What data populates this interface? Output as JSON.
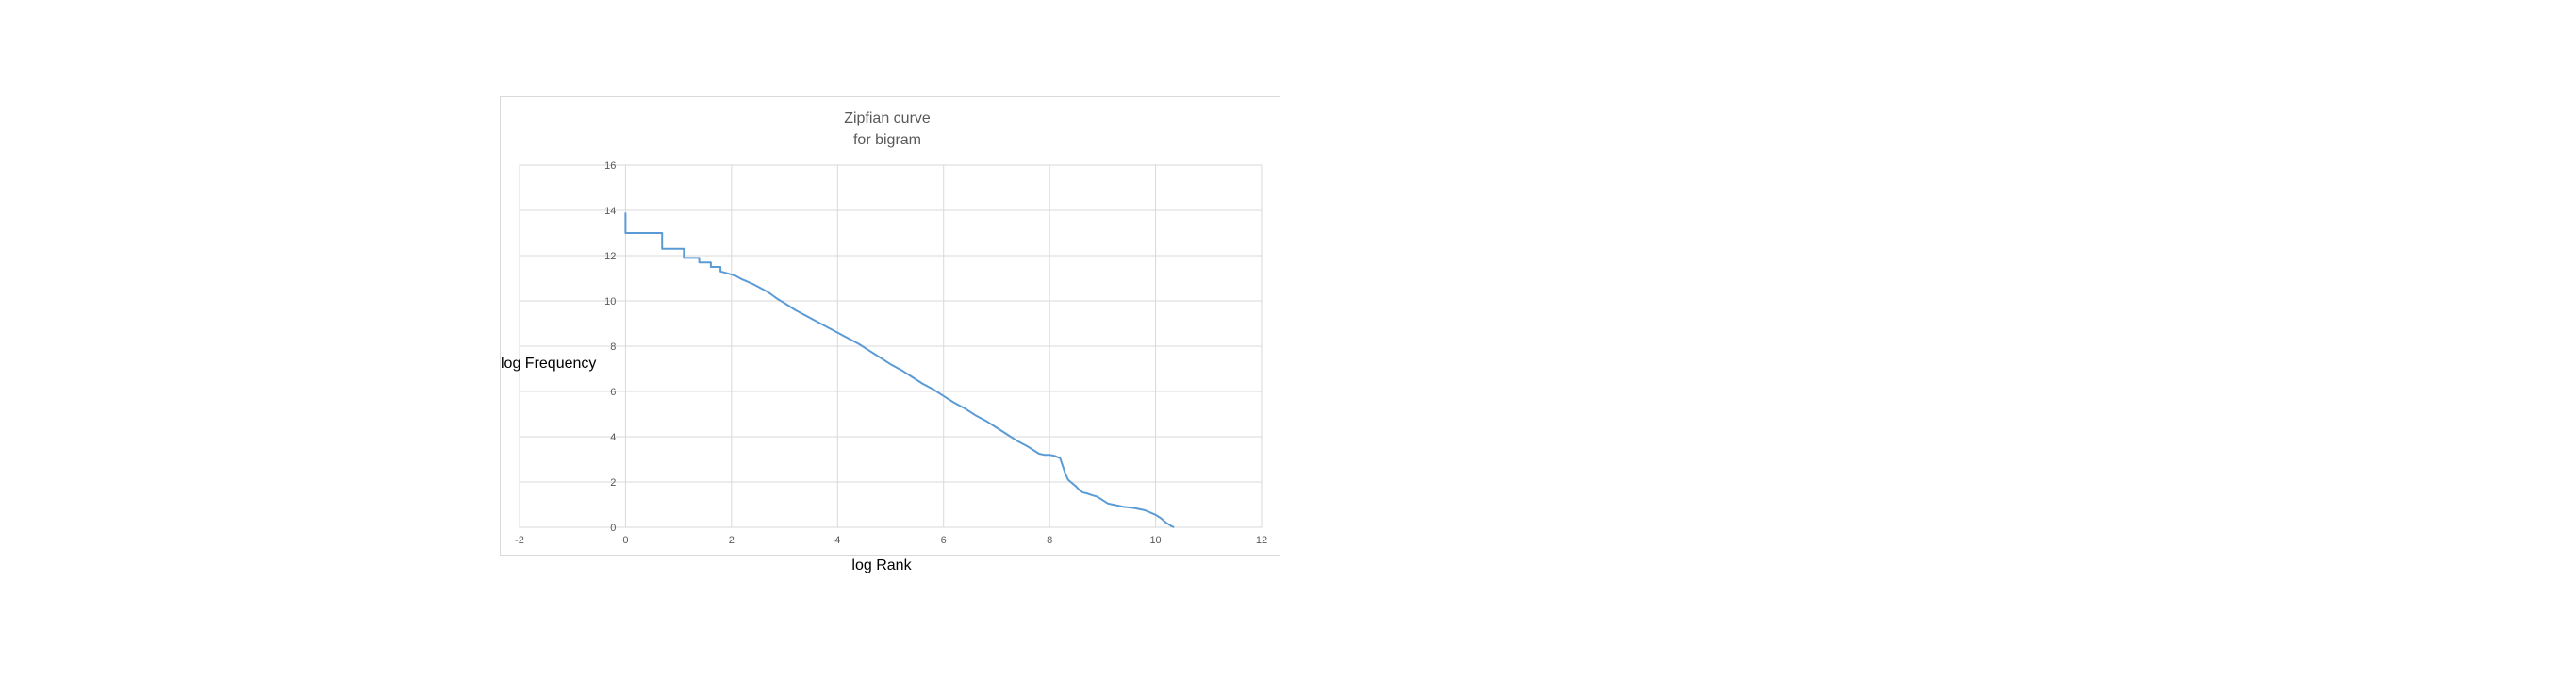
{
  "chart_data": {
    "type": "line",
    "title": [
      "Zipfian curve",
      "for bigram"
    ],
    "xlabel": "log Rank",
    "ylabel": "log Frequency",
    "xlim": [
      -2,
      12
    ],
    "ylim": [
      0,
      16
    ],
    "x_ticks": [
      -2,
      0,
      2,
      4,
      6,
      8,
      10,
      12
    ],
    "y_ticks": [
      0,
      2,
      4,
      6,
      8,
      10,
      12,
      14,
      16
    ],
    "grid": true,
    "legend": "none",
    "colors": {
      "series": "#5b9bd5",
      "grid": "#d9d9d9",
      "frame": "#d9d9d9"
    },
    "series": [
      {
        "x": [
          0.0,
          0.0,
          0.02,
          0.69,
          0.69,
          1.1,
          1.1,
          1.39,
          1.39,
          1.61,
          1.61,
          1.79,
          1.79,
          1.95,
          2.08,
          2.2,
          2.3,
          2.4,
          2.48,
          2.56,
          2.64,
          2.71,
          2.77,
          2.83,
          2.89,
          3.0,
          3.2,
          3.4,
          3.6,
          3.8,
          4.0,
          4.2,
          4.4,
          4.6,
          4.8,
          5.0,
          5.2,
          5.4,
          5.6,
          5.8,
          6.0,
          6.2,
          6.4,
          6.6,
          6.8,
          7.0,
          7.2,
          7.4,
          7.6,
          7.8,
          7.9,
          8.0,
          8.1,
          8.2,
          8.25,
          8.3,
          8.35,
          8.4,
          8.5,
          8.6,
          8.7,
          8.8,
          8.9,
          9.0,
          9.1,
          9.2,
          9.4,
          9.6,
          9.8,
          10.0,
          10.1,
          10.2,
          10.3,
          10.35
        ],
        "y": [
          13.9,
          13.0,
          13.0,
          13.0,
          12.3,
          12.3,
          11.9,
          11.9,
          11.7,
          11.7,
          11.5,
          11.5,
          11.3,
          11.2,
          11.1,
          10.95,
          10.85,
          10.75,
          10.65,
          10.55,
          10.45,
          10.35,
          10.25,
          10.15,
          10.05,
          9.9,
          9.6,
          9.35,
          9.1,
          8.85,
          8.6,
          8.35,
          8.1,
          7.8,
          7.5,
          7.2,
          6.95,
          6.65,
          6.35,
          6.1,
          5.8,
          5.5,
          5.25,
          4.95,
          4.7,
          4.4,
          4.1,
          3.8,
          3.55,
          3.25,
          3.2,
          3.2,
          3.15,
          3.05,
          2.7,
          2.35,
          2.1,
          2.0,
          1.8,
          1.55,
          1.5,
          1.42,
          1.35,
          1.2,
          1.05,
          1.0,
          0.9,
          0.85,
          0.75,
          0.55,
          0.4,
          0.2,
          0.05,
          0.0
        ]
      }
    ]
  }
}
